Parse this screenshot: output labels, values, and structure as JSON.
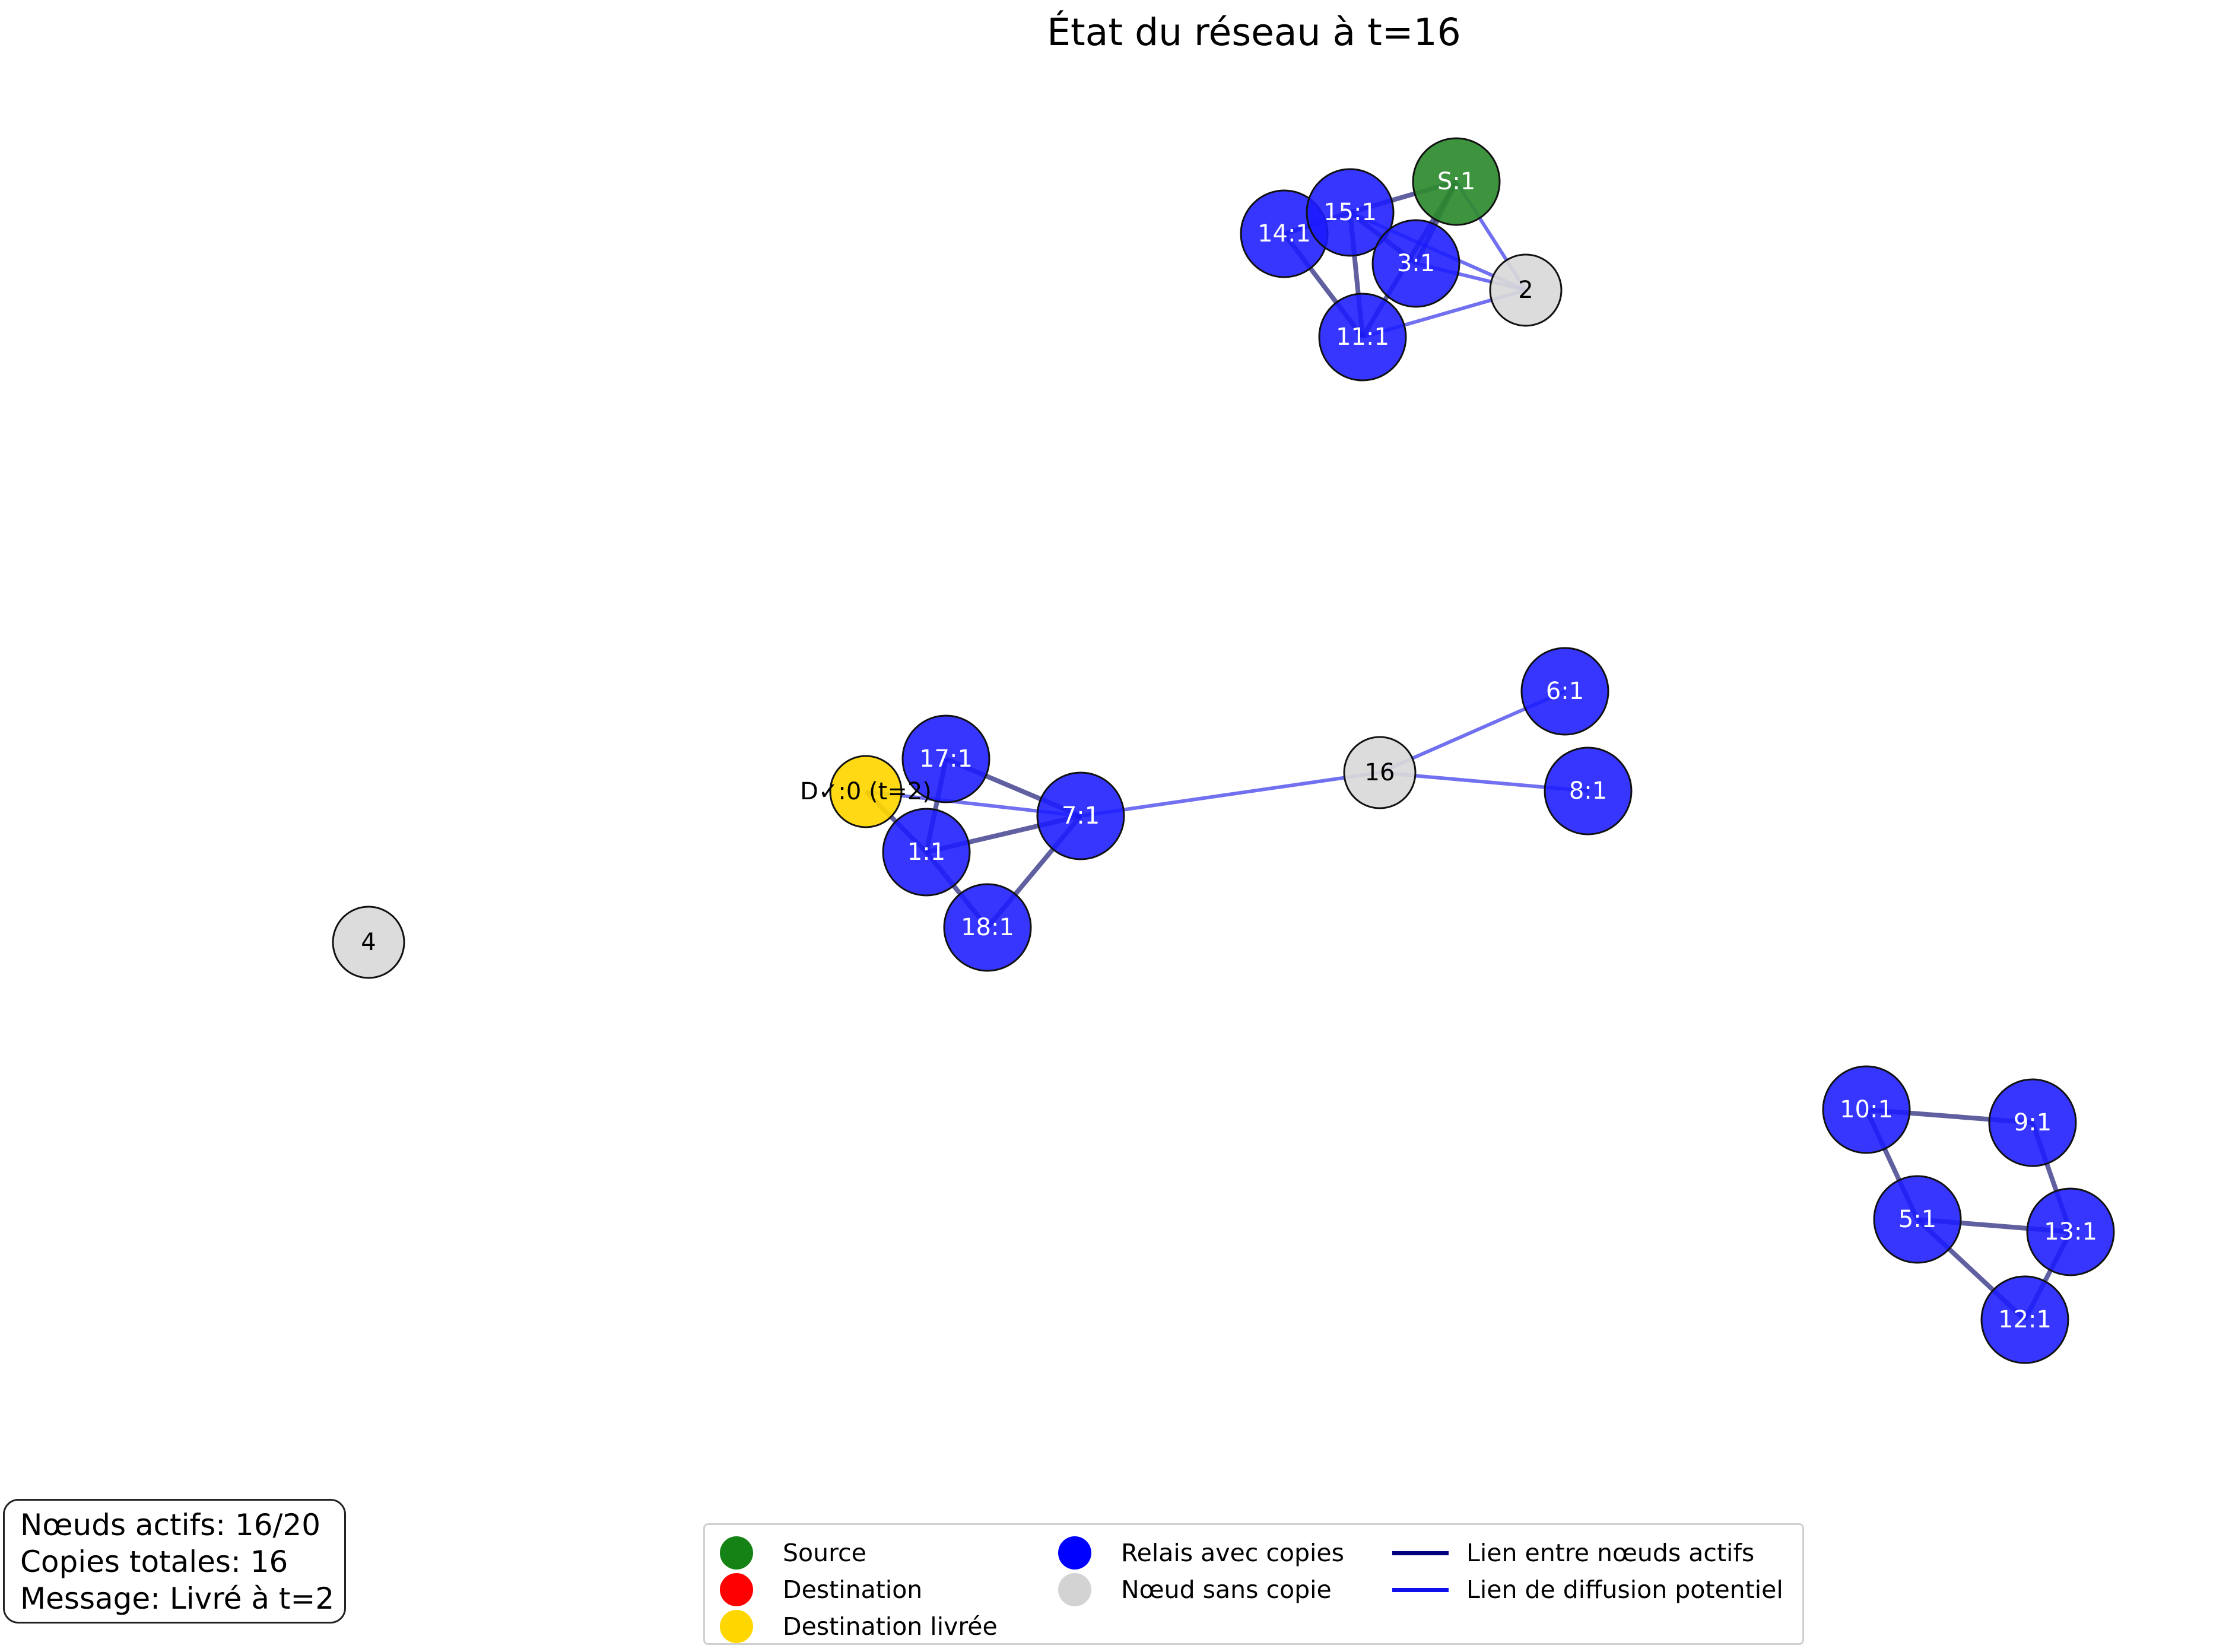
{
  "title": "État du réseau à t=16",
  "stats": [
    "Nœuds actifs: 16/20",
    "Copies totales: 16",
    "Message: Livré à t=2"
  ],
  "colors": {
    "source": "#2e8b2e",
    "destination": "#ff0000",
    "delivered": "#ffd700",
    "relay": "#1a1aff",
    "no_copy": "#d9d9d9",
    "active_link": "#0a0a6e",
    "diffusion_link": "#1010e6"
  },
  "legend": [
    {
      "label": "Source",
      "kind": "dot",
      "color": "#148214"
    },
    {
      "label": "Destination",
      "kind": "dot",
      "color": "#ff0000"
    },
    {
      "label": "Destination livrée",
      "kind": "dot",
      "color": "#ffd700"
    },
    {
      "label": "Relais avec copies",
      "kind": "dot",
      "color": "#0000ff"
    },
    {
      "label": "Nœud sans copie",
      "kind": "dot",
      "color": "#d3d3d3"
    },
    {
      "label": "Lien entre nœuds actifs",
      "kind": "line",
      "color": "#00007f"
    },
    {
      "label": "Lien de diffusion potentiel",
      "kind": "line",
      "color": "#1010ee"
    }
  ],
  "nodes": [
    {
      "id": "S",
      "label": "S:1",
      "type": "source"
    },
    {
      "id": "14",
      "label": "14:1",
      "type": "relay"
    },
    {
      "id": "15",
      "label": "15:1",
      "type": "relay"
    },
    {
      "id": "3",
      "label": "3:1",
      "type": "relay"
    },
    {
      "id": "11",
      "label": "11:1",
      "type": "relay"
    },
    {
      "id": "2",
      "label": "2",
      "type": "no_copy"
    },
    {
      "id": "6",
      "label": "6:1",
      "type": "relay"
    },
    {
      "id": "8",
      "label": "8:1",
      "type": "relay"
    },
    {
      "id": "16",
      "label": "16",
      "type": "no_copy"
    },
    {
      "id": "17",
      "label": "17:1",
      "type": "relay"
    },
    {
      "id": "D",
      "label": "D✓:0 (t=2)",
      "type": "delivered"
    },
    {
      "id": "7",
      "label": "7:1",
      "type": "relay"
    },
    {
      "id": "1",
      "label": "1:1",
      "type": "relay"
    },
    {
      "id": "18",
      "label": "18:1",
      "type": "relay"
    },
    {
      "id": "4",
      "label": "4",
      "type": "no_copy"
    },
    {
      "id": "10",
      "label": "10:1",
      "type": "relay"
    },
    {
      "id": "9",
      "label": "9:1",
      "type": "relay"
    },
    {
      "id": "5",
      "label": "5:1",
      "type": "relay"
    },
    {
      "id": "13",
      "label": "13:1",
      "type": "relay"
    },
    {
      "id": "12",
      "label": "12:1",
      "type": "relay"
    }
  ],
  "edges": [
    {
      "from": "S",
      "to": "15",
      "kind": "active"
    },
    {
      "from": "S",
      "to": "3",
      "kind": "active"
    },
    {
      "from": "S",
      "to": "11",
      "kind": "active"
    },
    {
      "from": "S",
      "to": "2",
      "kind": "diffusion"
    },
    {
      "from": "14",
      "to": "15",
      "kind": "active"
    },
    {
      "from": "14",
      "to": "11",
      "kind": "active"
    },
    {
      "from": "15",
      "to": "11",
      "kind": "active"
    },
    {
      "from": "15",
      "to": "3",
      "kind": "active"
    },
    {
      "from": "3",
      "to": "2",
      "kind": "diffusion"
    },
    {
      "from": "11",
      "to": "2",
      "kind": "diffusion"
    },
    {
      "from": "15",
      "to": "2",
      "kind": "diffusion"
    },
    {
      "from": "16",
      "to": "6",
      "kind": "diffusion"
    },
    {
      "from": "16",
      "to": "8",
      "kind": "diffusion"
    },
    {
      "from": "16",
      "to": "7",
      "kind": "diffusion"
    },
    {
      "from": "17",
      "to": "7",
      "kind": "active"
    },
    {
      "from": "17",
      "to": "1",
      "kind": "active"
    },
    {
      "from": "D",
      "to": "7",
      "kind": "diffusion"
    },
    {
      "from": "D",
      "to": "1",
      "kind": "active"
    },
    {
      "from": "1",
      "to": "7",
      "kind": "active"
    },
    {
      "from": "1",
      "to": "18",
      "kind": "active"
    },
    {
      "from": "18",
      "to": "7",
      "kind": "active"
    },
    {
      "from": "10",
      "to": "9",
      "kind": "active"
    },
    {
      "from": "10",
      "to": "5",
      "kind": "active"
    },
    {
      "from": "9",
      "to": "13",
      "kind": "active"
    },
    {
      "from": "5",
      "to": "13",
      "kind": "active"
    },
    {
      "from": "5",
      "to": "12",
      "kind": "active"
    },
    {
      "from": "13",
      "to": "12",
      "kind": "active"
    }
  ]
}
